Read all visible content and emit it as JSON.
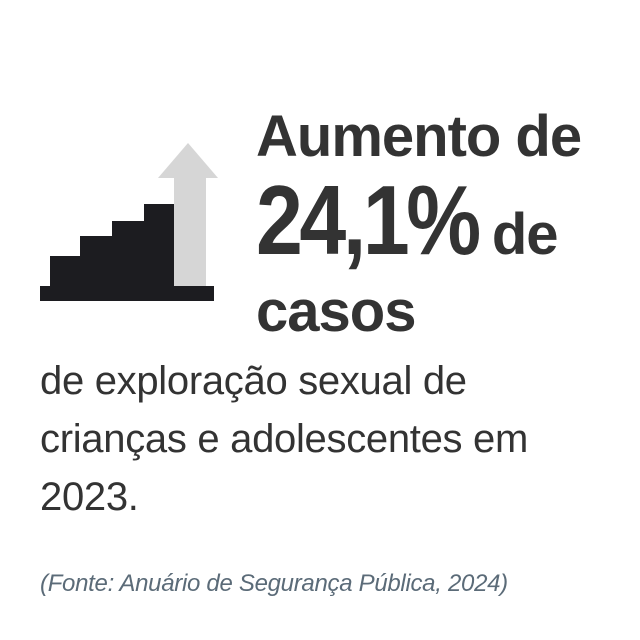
{
  "headline": {
    "line1": "Aumento de",
    "percentage": "24,1%",
    "line2_suffix": "de",
    "line3": "casos"
  },
  "body": {
    "text": " de exploração sexual de crianças e adolescentes em 2023."
  },
  "source": {
    "text": "(Fonte: Anuário de Segurança Pública, 2024)"
  },
  "icon": {
    "name": "rising-stairs-arrow-icon",
    "colors": {
      "stairs": "#1c1c20",
      "arrow": "#d6d6d6"
    }
  },
  "colors": {
    "headline": "#333333",
    "body": "#333333",
    "source": "#5b6b78",
    "background": "#ffffff"
  }
}
